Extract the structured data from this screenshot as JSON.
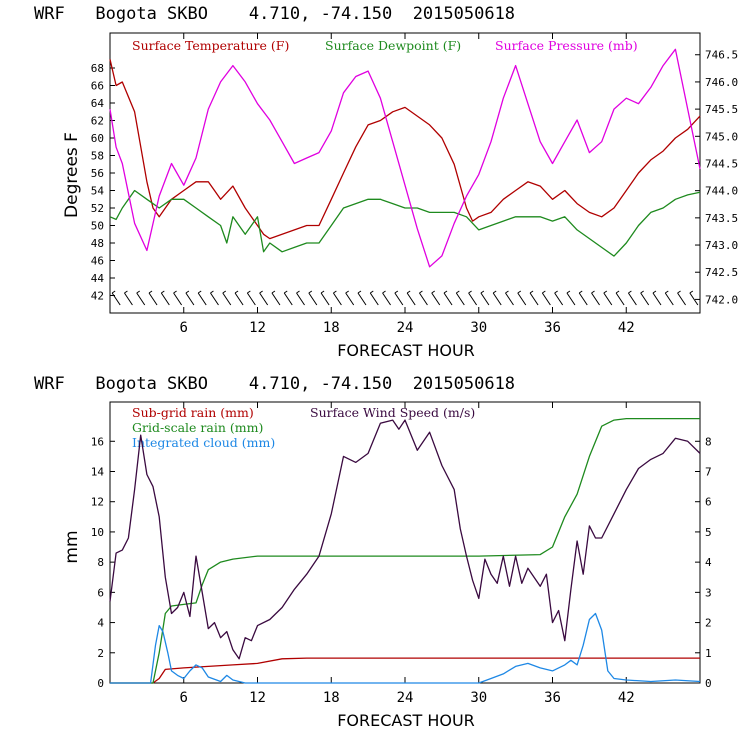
{
  "colors": {
    "red": "#b00000",
    "green": "#1e8a1e",
    "magenta": "#e000e0",
    "purple": "#3a0a40",
    "blue": "#1e88e5",
    "axis": "#000000"
  },
  "chart_data": [
    {
      "type": "line",
      "title": "WRF   Bogota SKBO    4.710, -74.150  2015050618",
      "xlabel": "FORECAST HOUR",
      "ylabel": "Degrees F",
      "xlim": [
        0,
        48
      ],
      "ylim": [
        40,
        72
      ],
      "y2lim": [
        741.75,
        746.9
      ],
      "x_ticks": [
        6,
        12,
        18,
        24,
        30,
        36,
        42
      ],
      "y_ticks": [
        42,
        44,
        46,
        48,
        50,
        52,
        54,
        56,
        58,
        60,
        62,
        64,
        66,
        68
      ],
      "y_tick_labels": [
        "42",
        "44",
        "46",
        "48",
        "50",
        "52",
        "54",
        "56",
        "58",
        "60",
        "62",
        "64",
        "66",
        "68"
      ],
      "y2_ticks": [
        742.0,
        742.5,
        743.0,
        743.5,
        744.0,
        744.5,
        745.0,
        745.5,
        746.0,
        746.5
      ],
      "y2_tick_labels": [
        "742.0",
        "742.5",
        "743.0",
        "743.5",
        "744.0",
        "744.5",
        "745.0",
        "745.5",
        "746.0",
        "746.5"
      ],
      "legend": [
        "Surface Temperature (F)",
        "Surface Dewpoint (F)",
        "Surface Pressure (mb)"
      ],
      "series": [
        {
          "name": "Surface Temperature (F)",
          "axis": "left",
          "color": "red",
          "x": [
            0,
            0.5,
            1,
            2,
            3,
            3.5,
            4,
            5,
            6,
            7,
            8,
            8.5,
            9,
            10,
            11,
            12,
            12.5,
            13,
            14,
            15,
            16,
            17,
            18,
            19,
            20,
            21,
            22,
            23,
            24,
            25,
            26,
            27,
            28,
            29,
            29.5,
            30,
            31,
            32,
            33,
            34,
            35,
            36,
            37,
            38,
            39,
            40,
            41,
            42,
            43,
            44,
            45,
            46,
            47,
            48
          ],
          "y": [
            69,
            66,
            66.4,
            63,
            55,
            52,
            51,
            53,
            54,
            55,
            55,
            54,
            53,
            54.5,
            52,
            50,
            49,
            48.5,
            49,
            49.5,
            50,
            50,
            53,
            56,
            59,
            61.5,
            62,
            63,
            63.5,
            62.5,
            61.5,
            60,
            57,
            52,
            50.5,
            51,
            51.5,
            53,
            54,
            55,
            54.5,
            53,
            54,
            52.5,
            51.5,
            51,
            52,
            54,
            56,
            57.5,
            58.5,
            60,
            61,
            62.5
          ]
        },
        {
          "name": "Surface Dewpoint (F)",
          "axis": "left",
          "color": "green",
          "x": [
            0,
            0.5,
            1,
            2,
            3,
            4,
            5,
            6,
            7,
            8,
            9,
            9.5,
            10,
            11,
            12,
            12.5,
            13,
            14,
            15,
            16,
            17,
            18,
            19,
            20,
            21,
            22,
            23,
            24,
            25,
            26,
            27,
            28,
            29,
            30,
            31,
            32,
            33,
            34,
            35,
            36,
            37,
            38,
            39,
            40,
            41,
            42,
            43,
            44,
            45,
            46,
            47,
            48
          ],
          "y": [
            51,
            50.7,
            52,
            54,
            53,
            52,
            53,
            53,
            52,
            51,
            50,
            48,
            51,
            49,
            51,
            47,
            48,
            47,
            47.5,
            48,
            48,
            50,
            52,
            52.5,
            53,
            53,
            52.5,
            52,
            52,
            51.5,
            51.5,
            51.5,
            51,
            49.5,
            50,
            50.5,
            51,
            51,
            51,
            50.5,
            51,
            49.5,
            48.5,
            47.5,
            46.5,
            48,
            50,
            51.5,
            52,
            53,
            53.5,
            53.8
          ]
        },
        {
          "name": "Surface Pressure (mb)",
          "axis": "right",
          "color": "magenta",
          "x": [
            0,
            0.5,
            1,
            2,
            3,
            4,
            5,
            6,
            7,
            8,
            9,
            10,
            11,
            12,
            13,
            14,
            15,
            16,
            17,
            18,
            19,
            20,
            21,
            22,
            23,
            24,
            25,
            26,
            27,
            28,
            29,
            30,
            31,
            32,
            33,
            34,
            35,
            36,
            37,
            38,
            39,
            40,
            41,
            42,
            43,
            44,
            45,
            46,
            47,
            48
          ],
          "y": [
            745.5,
            744.8,
            744.5,
            743.4,
            742.9,
            743.9,
            744.5,
            744.1,
            744.6,
            745.5,
            746.0,
            746.3,
            746.0,
            745.6,
            745.3,
            744.9,
            744.5,
            744.6,
            744.7,
            745.1,
            745.8,
            746.1,
            746.2,
            745.7,
            744.9,
            744.1,
            743.3,
            742.6,
            742.8,
            743.4,
            743.9,
            744.3,
            744.9,
            745.7,
            746.3,
            745.6,
            744.9,
            744.5,
            744.9,
            745.3,
            744.7,
            744.9,
            745.5,
            745.7,
            745.6,
            745.9,
            746.3,
            746.6,
            745.5,
            744.4
          ]
        }
      ],
      "wind_barbs": {
        "x_range": [
          0,
          48
        ],
        "count": 48
      }
    },
    {
      "type": "line",
      "title": "WRF   Bogota SKBO    4.710, -74.150  2015050618",
      "xlabel": "FORECAST HOUR",
      "ylabel": "mm",
      "xlim": [
        0,
        48
      ],
      "ylim": [
        0,
        18.6
      ],
      "y2lim": [
        0,
        9.3
      ],
      "x_ticks": [
        6,
        12,
        18,
        24,
        30,
        36,
        42
      ],
      "y_ticks": [
        0,
        2,
        4,
        6,
        8,
        10,
        12,
        14,
        16
      ],
      "y_tick_labels": [
        "0",
        "2",
        "4",
        "6",
        "8",
        "10",
        "12",
        "14",
        "16"
      ],
      "y2_ticks": [
        0,
        1,
        2,
        3,
        4,
        5,
        6,
        7,
        8
      ],
      "y2_tick_labels": [
        "0",
        "1",
        "2",
        "3",
        "4",
        "5",
        "6",
        "7",
        "8"
      ],
      "legend": [
        "Sub-grid rain (mm)",
        "Surface Wind Speed (m/s)",
        "Grid-scale rain (mm)",
        "Integrated cloud (mm)"
      ],
      "series": [
        {
          "name": "Sub-grid rain (mm)",
          "axis": "left",
          "color": "red",
          "x": [
            0,
            3.5,
            4,
            4.5,
            6,
            8,
            10,
            12,
            14,
            16,
            18,
            24,
            30,
            36,
            42,
            48
          ],
          "y": [
            0,
            0,
            0.3,
            0.9,
            1.0,
            1.1,
            1.2,
            1.3,
            1.6,
            1.65,
            1.65,
            1.65,
            1.65,
            1.65,
            1.65,
            1.65
          ]
        },
        {
          "name": "Grid-scale rain (mm)",
          "axis": "left",
          "color": "green",
          "x": [
            0,
            3.5,
            4,
            4.5,
            5,
            6,
            7,
            7.5,
            8,
            9,
            10,
            12,
            14,
            16,
            18,
            24,
            30,
            35,
            36,
            37,
            38,
            39,
            40,
            41,
            42,
            48
          ],
          "y": [
            0,
            0,
            2,
            4.6,
            5.1,
            5.2,
            5.3,
            6.5,
            7.5,
            8.0,
            8.2,
            8.4,
            8.4,
            8.4,
            8.4,
            8.4,
            8.4,
            8.5,
            9.0,
            11,
            12.5,
            15,
            17,
            17.4,
            17.5,
            17.5
          ]
        },
        {
          "name": "Integrated cloud (mm)",
          "axis": "left",
          "color": "blue",
          "x": [
            0,
            3.3,
            3.7,
            4,
            4.3,
            4.7,
            5,
            5.5,
            6,
            6.5,
            7,
            7.5,
            8,
            9,
            9.5,
            10,
            11,
            12,
            30,
            31,
            32,
            33,
            34,
            35,
            36,
            37,
            37.5,
            38,
            38.5,
            39,
            39.5,
            40,
            40.5,
            41,
            42,
            44,
            46,
            48
          ],
          "y": [
            0,
            0,
            2.5,
            3.8,
            3.4,
            2,
            0.8,
            0.5,
            0.3,
            0.8,
            1.2,
            1.0,
            0.4,
            0.1,
            0.5,
            0.2,
            0,
            0,
            0,
            0.3,
            0.6,
            1.1,
            1.3,
            1.0,
            0.8,
            1.2,
            1.5,
            1.2,
            2.5,
            4.2,
            4.6,
            3.5,
            0.8,
            0.3,
            0.2,
            0.1,
            0.2,
            0.1
          ]
        },
        {
          "name": "Surface Wind Speed (m/s)",
          "axis": "right",
          "color": "purple",
          "x": [
            0,
            0.5,
            1,
            1.5,
            2,
            2.5,
            3,
            3.5,
            4,
            4.5,
            5,
            5.5,
            6,
            6.5,
            7,
            7.5,
            8,
            8.5,
            9,
            9.5,
            10,
            10.5,
            11,
            11.5,
            12,
            13,
            14,
            15,
            16,
            17,
            18,
            19,
            20,
            21,
            22,
            23,
            23.5,
            24,
            25,
            26,
            27,
            28,
            28.5,
            29,
            29.5,
            30,
            30.5,
            31,
            31.5,
            32,
            32.5,
            33,
            33.5,
            34,
            35,
            35.5,
            36,
            36.5,
            37,
            37.5,
            38,
            38.5,
            39,
            39.5,
            40,
            41,
            42,
            43,
            44,
            45,
            46,
            47,
            48
          ],
          "y": [
            2.7,
            4.3,
            4.4,
            4.8,
            6.4,
            8.2,
            6.9,
            6.5,
            5.5,
            3.5,
            2.3,
            2.5,
            3,
            2.2,
            4.2,
            3,
            1.8,
            2,
            1.5,
            1.7,
            1.1,
            0.8,
            1.5,
            1.4,
            1.9,
            2.1,
            2.5,
            3.1,
            3.6,
            4.2,
            5.6,
            7.5,
            7.3,
            7.6,
            8.6,
            8.7,
            8.4,
            8.7,
            7.7,
            8.3,
            7.2,
            6.4,
            5.1,
            4.2,
            3.4,
            2.8,
            4.1,
            3.6,
            3.3,
            4.2,
            3.2,
            4.2,
            3.3,
            3.8,
            3.2,
            3.6,
            2,
            2.4,
            1.4,
            3.1,
            4.7,
            3.6,
            5.2,
            4.8,
            4.8,
            5.6,
            6.4,
            7.1,
            7.4,
            7.6,
            8.1,
            8.0,
            7.6
          ]
        }
      ]
    }
  ]
}
